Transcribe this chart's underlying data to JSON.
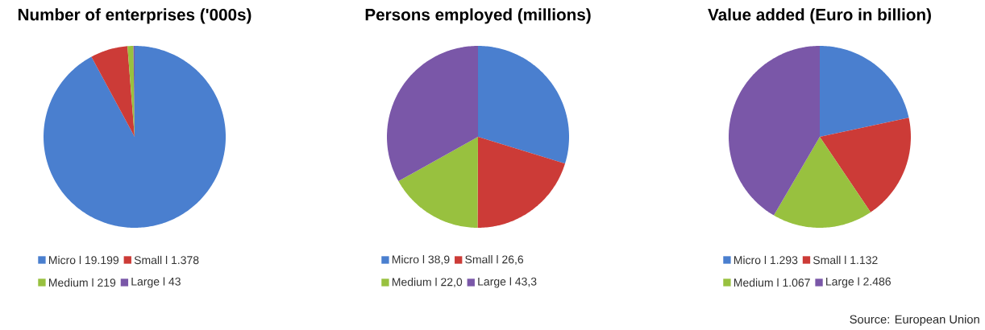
{
  "chart_data": [
    {
      "type": "pie",
      "title": "Number of enterprises ('000s)",
      "categories": [
        "Micro l 19.199",
        "Small l 1.378",
        "Medium l 219",
        "Large l 43"
      ],
      "values": [
        19199,
        1378,
        219,
        43
      ],
      "colors": [
        "#4a7fcf",
        "#cc3b37",
        "#98c13f",
        "#7a57a8"
      ],
      "legend": "bottom"
    },
    {
      "type": "pie",
      "title": "Persons employed (millions)",
      "categories": [
        "Micro l 38,9",
        "Small l 26,6",
        "Medium l 22,0",
        "Large l 43,3"
      ],
      "values": [
        38.9,
        26.6,
        22.0,
        43.3
      ],
      "colors": [
        "#4a7fcf",
        "#cc3b37",
        "#98c13f",
        "#7a57a8"
      ],
      "legend": "bottom"
    },
    {
      "type": "pie",
      "title": "Value added (Euro in billion)",
      "categories": [
        "Micro l 1.293",
        "Small l 1.132",
        "Medium l 1.067",
        "Large l 2.486"
      ],
      "values": [
        1293,
        1132,
        1067,
        2486
      ],
      "colors": [
        "#4a7fcf",
        "#cc3b37",
        "#98c13f",
        "#7a57a8"
      ],
      "legend": "bottom",
      "annotations": [
        "Source: European Union"
      ]
    }
  ]
}
